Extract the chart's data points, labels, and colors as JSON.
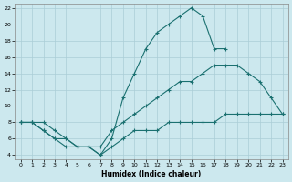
{
  "xlabel": "Humidex (Indice chaleur)",
  "bg_color": "#cce8ee",
  "grid_color": "#aacdd6",
  "line_color": "#1a7070",
  "xlim": [
    -0.5,
    23.5
  ],
  "ylim": [
    3.5,
    22.5
  ],
  "xticks": [
    0,
    1,
    2,
    3,
    4,
    5,
    6,
    7,
    8,
    9,
    10,
    11,
    12,
    13,
    14,
    15,
    16,
    17,
    18,
    19,
    20,
    21,
    22,
    23
  ],
  "yticks": [
    4,
    6,
    8,
    10,
    12,
    14,
    16,
    18,
    20,
    22
  ],
  "line1_x": [
    0,
    1,
    2,
    3,
    4,
    5,
    6,
    7,
    8,
    9,
    10,
    11,
    12,
    13,
    14,
    15,
    16,
    17,
    18
  ],
  "line1_y": [
    8,
    8,
    7,
    6,
    5,
    5,
    5,
    4,
    6,
    11,
    14,
    17,
    19,
    20,
    21,
    22,
    21,
    17,
    17
  ],
  "line2_x": [
    0,
    1,
    2,
    3,
    4,
    5,
    6,
    7,
    8,
    9,
    10,
    11,
    12,
    13,
    14,
    15,
    16,
    17,
    18,
    19,
    20,
    21,
    22,
    23
  ],
  "line2_y": [
    8,
    8,
    8,
    7,
    6,
    5,
    5,
    5,
    7,
    8,
    9,
    10,
    11,
    12,
    13,
    13,
    14,
    15,
    15,
    15,
    14,
    13,
    11,
    9
  ],
  "line3_x": [
    0,
    1,
    2,
    3,
    4,
    5,
    6,
    7,
    8,
    9,
    10,
    11,
    12,
    13,
    14,
    15,
    16,
    17,
    18,
    19,
    20,
    21,
    22,
    23
  ],
  "line3_y": [
    8,
    8,
    7,
    6,
    6,
    5,
    5,
    4,
    5,
    6,
    7,
    7,
    7,
    8,
    8,
    8,
    8,
    8,
    9,
    9,
    9,
    9,
    9,
    9
  ]
}
